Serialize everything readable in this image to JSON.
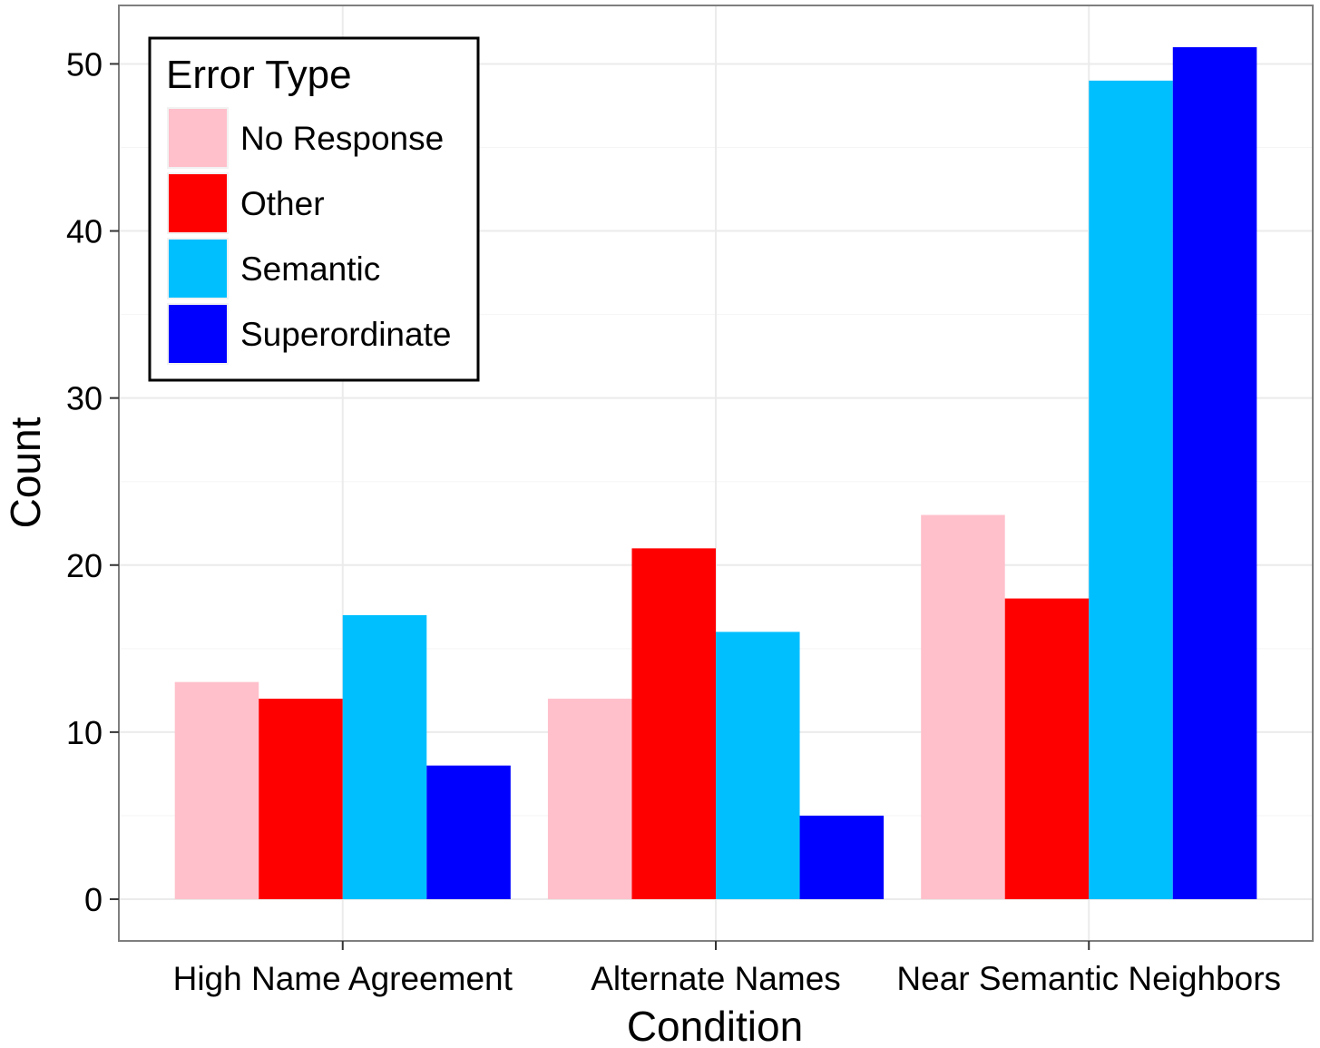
{
  "chart_data": {
    "type": "bar",
    "title": "",
    "xlabel": "Condition",
    "ylabel": "Count",
    "categories": [
      "High Name Agreement",
      "Alternate Names",
      "Near Semantic Neighbors"
    ],
    "series": [
      {
        "name": "No Response",
        "color": "#FFC0CB",
        "values": [
          13,
          12,
          23
        ]
      },
      {
        "name": "Other",
        "color": "#FF0000",
        "values": [
          12,
          21,
          18
        ]
      },
      {
        "name": "Semantic",
        "color": "#00BFFF",
        "values": [
          17,
          16,
          49
        ]
      },
      {
        "name": "Superordinate",
        "color": "#0000FF",
        "values": [
          8,
          5,
          51
        ]
      }
    ],
    "ylim": [
      -2.5,
      53.5
    ],
    "yticks": [
      0,
      10,
      20,
      30,
      40,
      50
    ],
    "grid": true,
    "legend": {
      "title": "Error Type",
      "position": "top-left"
    }
  }
}
